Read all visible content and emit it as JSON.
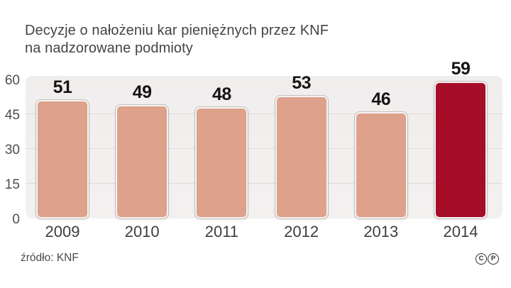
{
  "header": {
    "title_line1": "Decyzje o nałożeniu kar pieniężnych przez KNF",
    "title_line2": "na nadzorowane podmioty"
  },
  "chart_data": {
    "type": "bar",
    "title": "Decyzje o nałożeniu kar pieniężnych przez KNF na nadzorowane podmioty",
    "categories": [
      "2009",
      "2010",
      "2011",
      "2012",
      "2013",
      "2014"
    ],
    "values": [
      51,
      49,
      48,
      53,
      46,
      59
    ],
    "highlight_index": 5,
    "xlabel": "",
    "ylabel": "",
    "ylim": [
      0,
      60
    ],
    "yticks": [
      0,
      15,
      30,
      45,
      60
    ],
    "grid": true,
    "legend": false,
    "colors": {
      "bar": "#dda18c",
      "bar_highlight": "#a50d28",
      "bar_border": "#f7f4f2",
      "panel_bg": "#f1efee",
      "gridline": "#dedcdb",
      "value_label": "#161514",
      "axis_label": "#4f4e4d"
    }
  },
  "footer": {
    "source": "źródło: KNF",
    "copyright_marks": [
      "C",
      "P"
    ]
  }
}
